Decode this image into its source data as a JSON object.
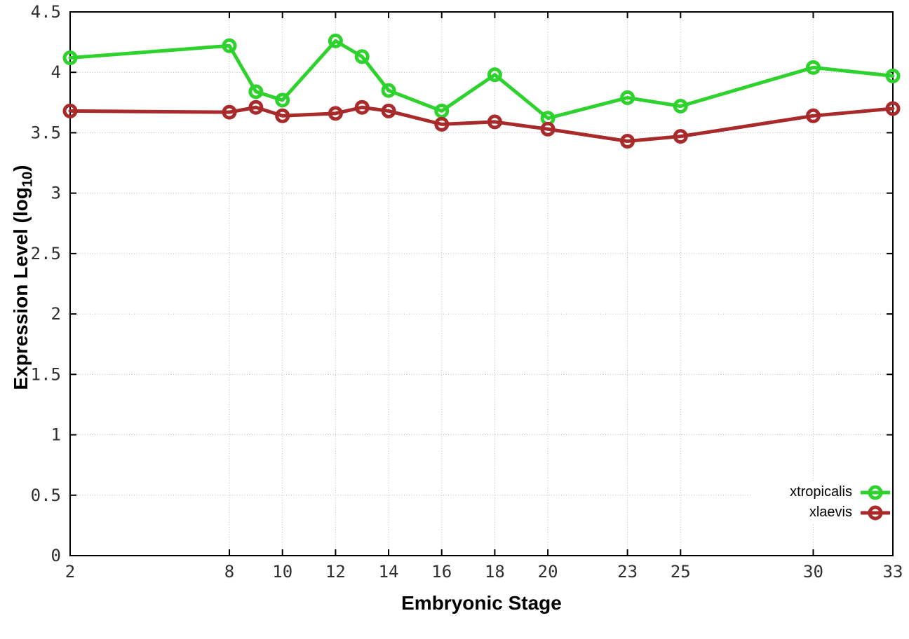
{
  "chart_data": {
    "type": "line",
    "title": "",
    "xlabel": "Embryonic Stage",
    "ylabel": "Expression Level (log10)",
    "ylabel_parts": {
      "main": "Expression Level (log",
      "sub": "10",
      "close": ")"
    },
    "x": [
      2,
      8,
      9,
      10,
      12,
      13,
      14,
      16,
      18,
      20,
      23,
      25,
      30,
      33
    ],
    "x_tick_labels": [
      2,
      8,
      10,
      12,
      14,
      16,
      18,
      20,
      23,
      25,
      30,
      33
    ],
    "y_tick_labels": [
      "0",
      "0.5",
      "1",
      "1.5",
      "2",
      "2.5",
      "3",
      "3.5",
      "4",
      "4.5"
    ],
    "y_tick_values": [
      0,
      0.5,
      1,
      1.5,
      2,
      2.5,
      3,
      3.5,
      4,
      4.5
    ],
    "xlim": [
      2,
      33
    ],
    "ylim": [
      0,
      4.5
    ],
    "grid": true,
    "legend_position": "bottom-right",
    "series": [
      {
        "name": "xtropicalis",
        "color": "#2dd22d",
        "values": [
          4.12,
          4.22,
          3.84,
          3.77,
          4.26,
          4.13,
          3.85,
          3.68,
          3.98,
          3.62,
          3.79,
          3.72,
          4.04,
          3.97
        ]
      },
      {
        "name": "xlaevis",
        "color": "#a82a2a",
        "values": [
          3.68,
          3.67,
          3.71,
          3.64,
          3.66,
          3.71,
          3.68,
          3.57,
          3.59,
          3.53,
          3.43,
          3.47,
          3.64,
          3.7
        ]
      }
    ]
  },
  "style": {
    "grid_color": "#b8b8b8",
    "axis_color": "#000000",
    "tick_label_color": "#2f2f2f",
    "background": "#ffffff"
  }
}
